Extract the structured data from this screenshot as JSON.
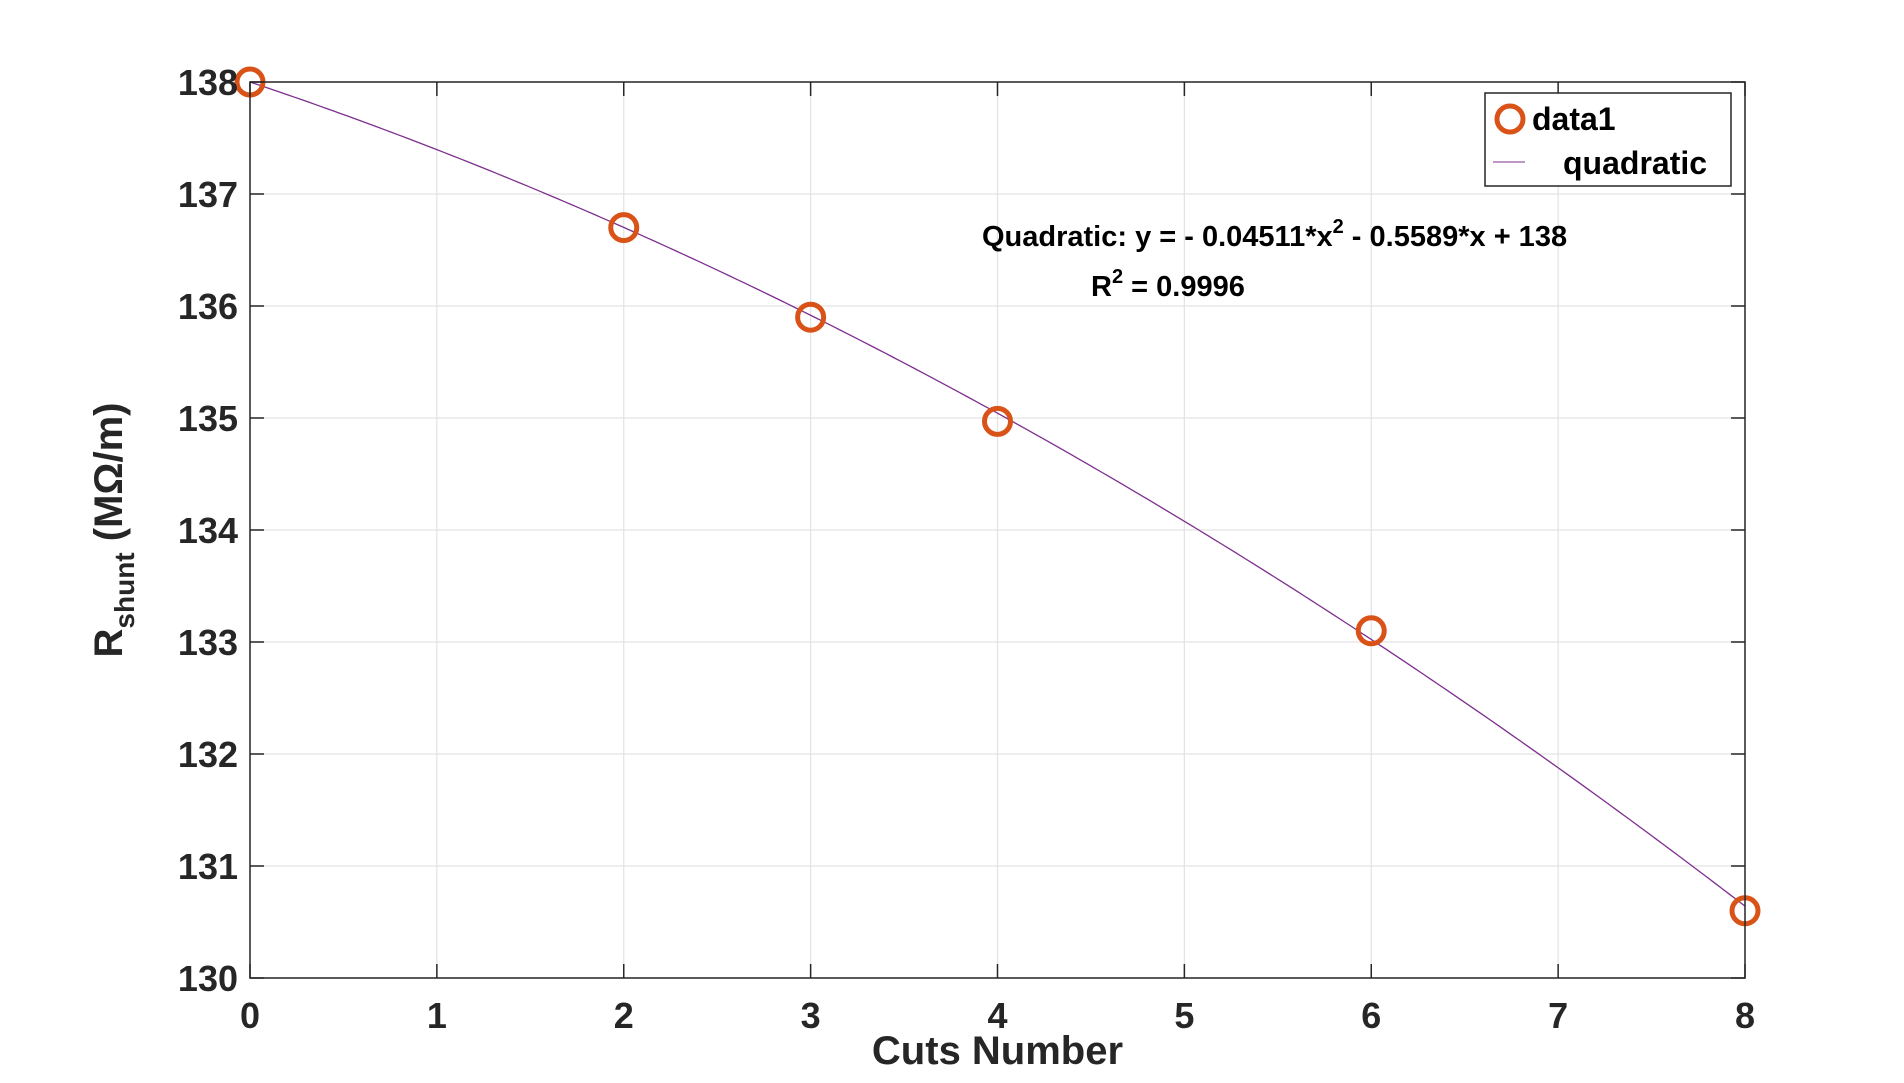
{
  "chart_data": {
    "type": "scatter",
    "xlabel": "Cuts Number",
    "ylabel": {
      "main": "R",
      "sub": "shunt",
      "unit": " (MΩ/m)"
    },
    "xlim": [
      0,
      8
    ],
    "ylim": [
      130,
      138
    ],
    "xticks": [
      "0",
      "1",
      "2",
      "3",
      "4",
      "5",
      "6",
      "7",
      "8"
    ],
    "yticks": [
      "130",
      "131",
      "132",
      "133",
      "134",
      "135",
      "136",
      "137",
      "138"
    ],
    "grid": true,
    "legend_placement": "top-right",
    "series": [
      {
        "name": "data1",
        "style": "markers",
        "color": "#D95319",
        "x": [
          0,
          2,
          3,
          4,
          6,
          8
        ],
        "y": [
          138.0,
          136.7,
          135.9,
          134.97,
          133.1,
          130.6
        ]
      },
      {
        "name": "quadratic",
        "style": "line",
        "color": "#7E2F8E",
        "fit": {
          "a": -0.04511,
          "b": -0.5589,
          "c": 138
        }
      }
    ],
    "annotation": {
      "equation_prefix": "Quadratic:  y = - 0.04511*x",
      "equation_exp": "2",
      "equation_suffix": " - 0.5589*x + 138",
      "r2_prefix": "R",
      "r2_exp": "2",
      "r2_suffix": " = 0.9996"
    }
  }
}
